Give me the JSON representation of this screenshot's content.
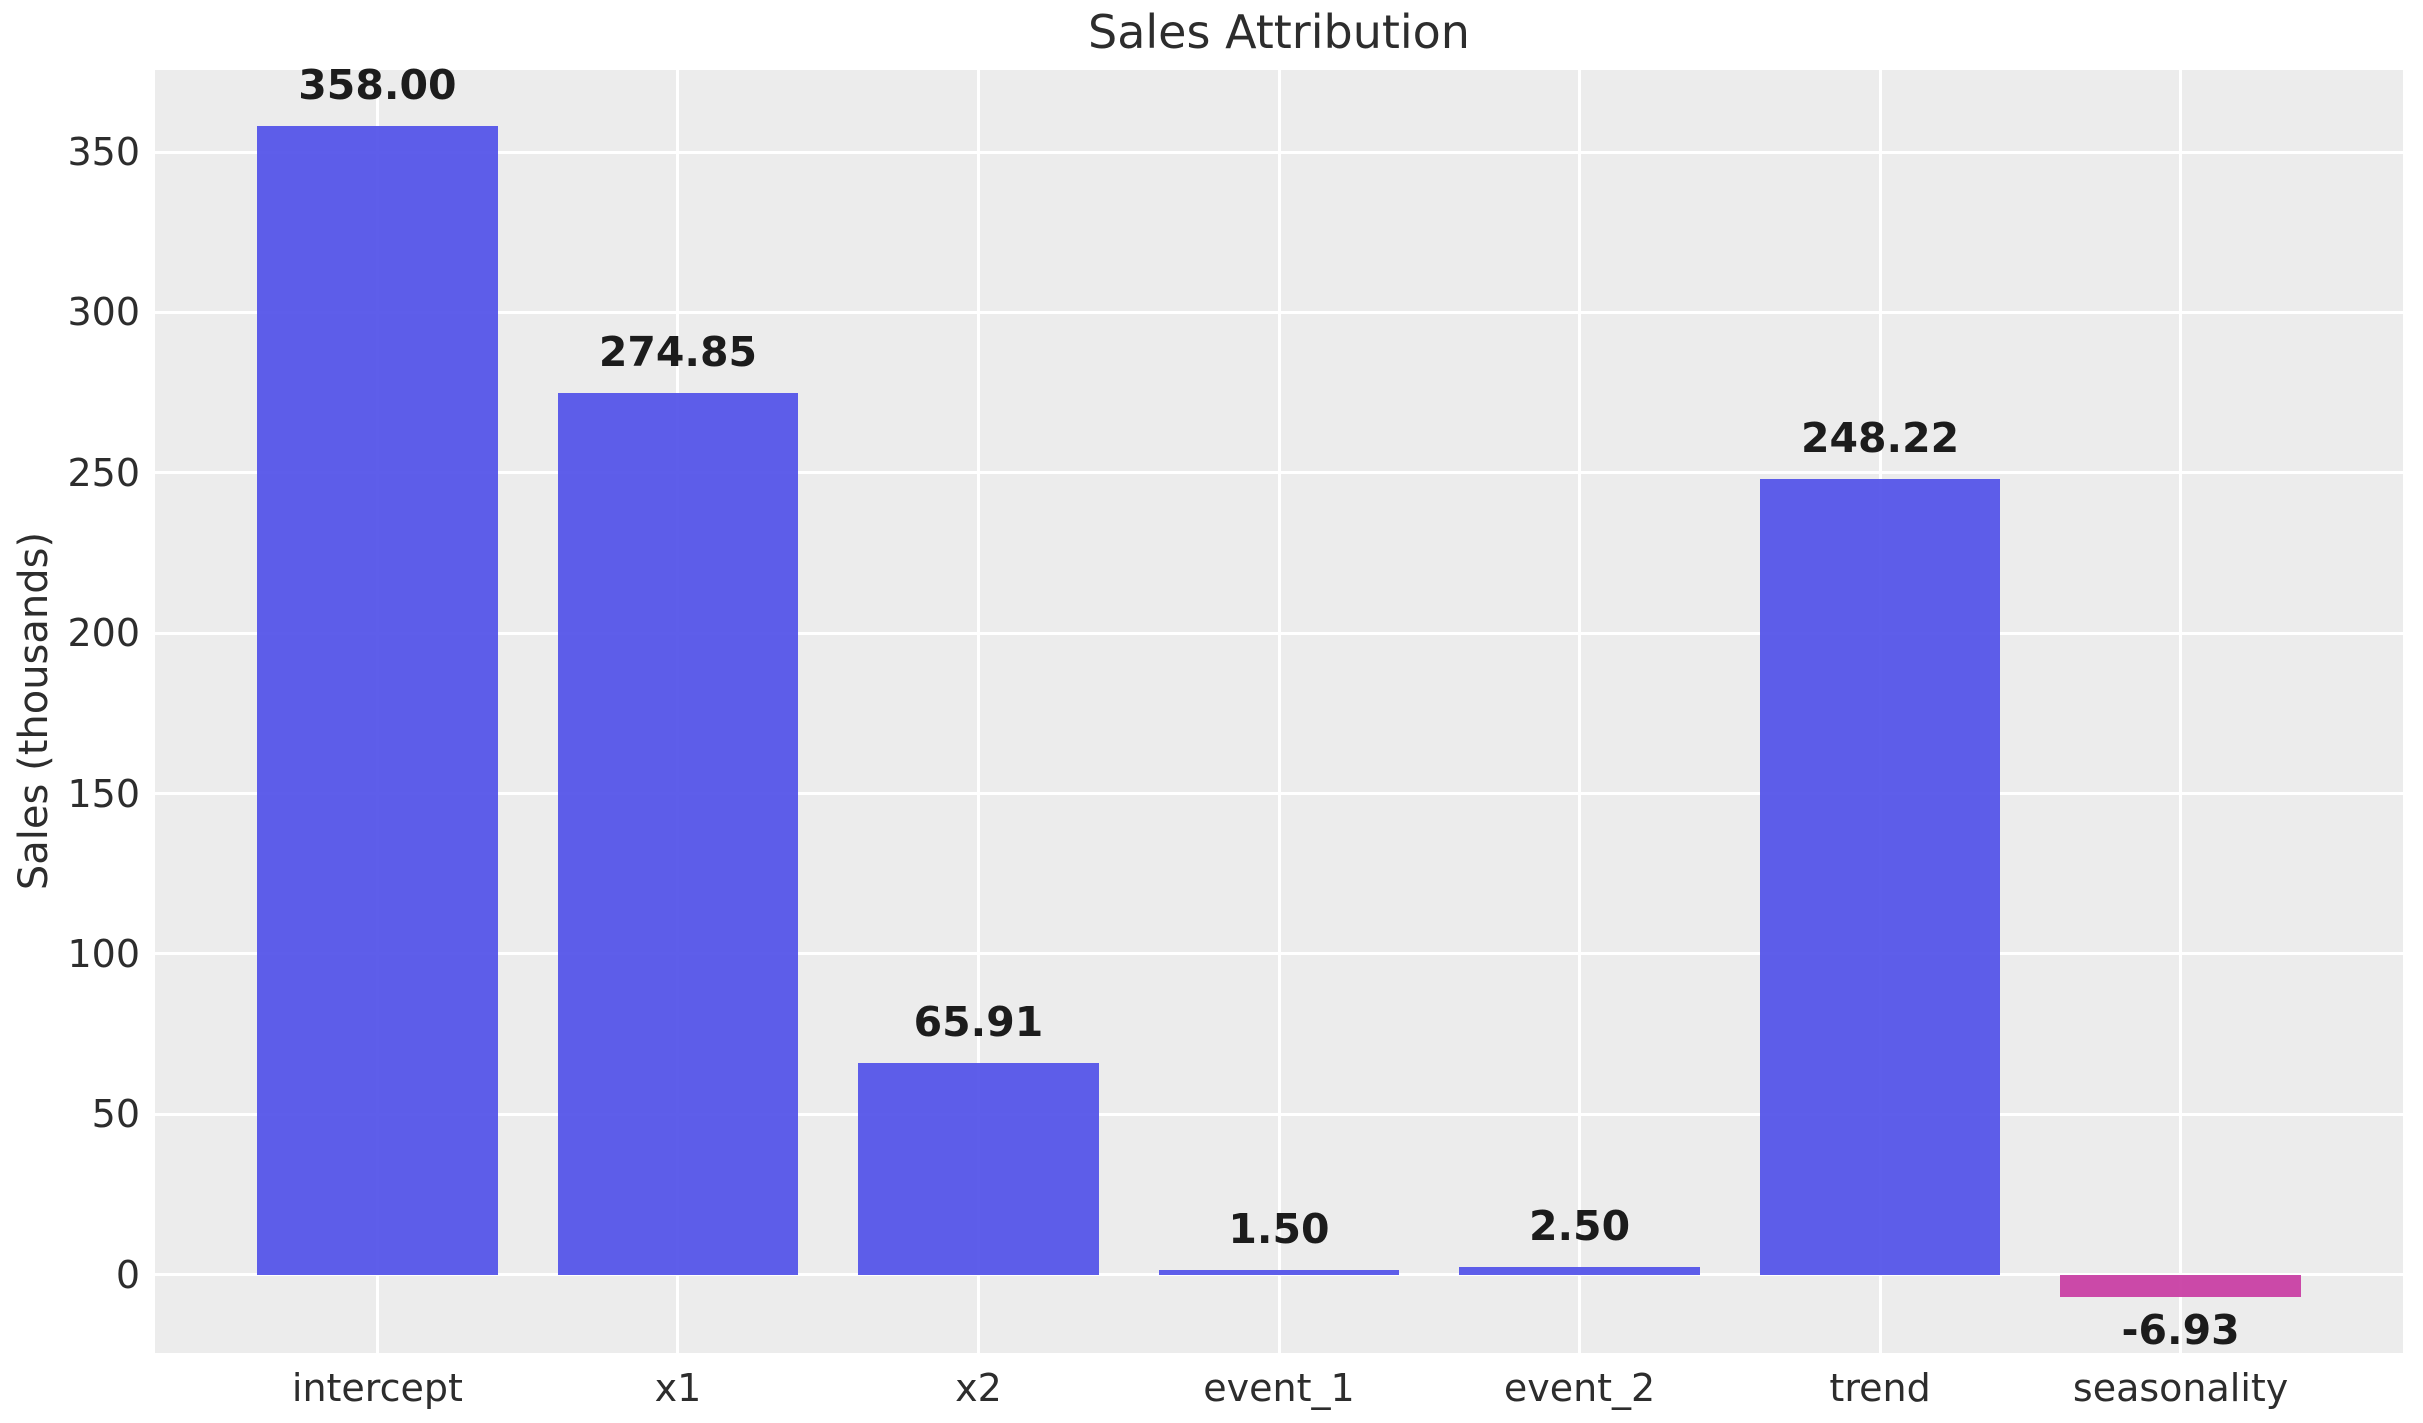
{
  "chart_data": {
    "type": "bar",
    "title": "Sales Attribution",
    "xlabel": "",
    "ylabel": "Sales (thousands)",
    "categories": [
      "intercept",
      "x1",
      "x2",
      "event_1",
      "event_2",
      "trend",
      "seasonality"
    ],
    "values": [
      358.0,
      274.85,
      65.91,
      1.5,
      2.5,
      248.22,
      -6.93
    ],
    "value_labels": [
      "358.00",
      "274.85",
      "65.91",
      "1.50",
      "2.50",
      "248.22",
      "-6.93"
    ],
    "yticks": [
      0,
      50,
      100,
      150,
      200,
      250,
      300,
      350
    ],
    "ylim": [
      -24.4,
      375.6
    ],
    "grid": true,
    "legend": false,
    "colors": {
      "positive_bar": "#5252E8",
      "negative_bar": "#C83CA2",
      "plot_bg": "#ECECEC",
      "grid": "#FFFFFF",
      "figure_bg": "#FFFFFF",
      "tick_text": "#2d2d2d",
      "value_text": "#1c1c1c"
    }
  }
}
